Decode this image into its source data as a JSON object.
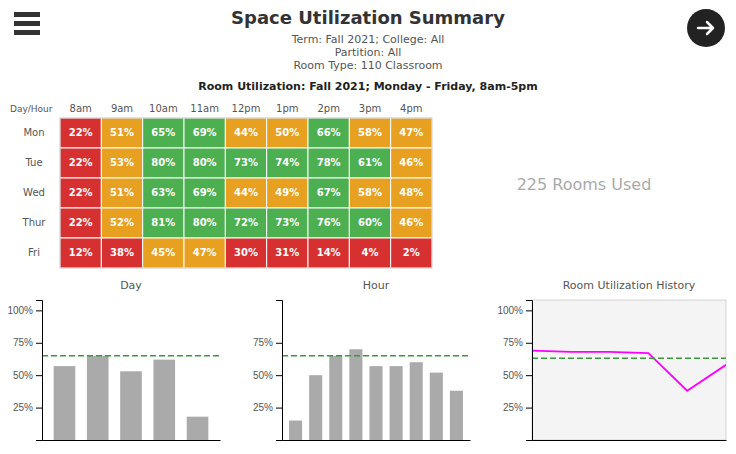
{
  "title": "Space Utilization Summary",
  "subtitle": [
    "Term: Fall 2021; College: All",
    "Partition: All",
    "Room Type: 110 Classroom"
  ],
  "annotations": [
    "225 Rooms Used"
  ],
  "chart_data": [
    {
      "type": "heatmap",
      "title": "Room Utilization: Fall 2021; Monday - Friday, 8am-5pm",
      "annotations": [
        "Day/Hour"
      ],
      "x": [
        "8am",
        "9am",
        "10am",
        "11am",
        "12pm",
        "1pm",
        "2pm",
        "3pm",
        "4pm"
      ],
      "y": [
        "Mon",
        "Tue",
        "Wed",
        "Thur",
        "Fri"
      ],
      "values": [
        [
          22,
          51,
          65,
          69,
          44,
          50,
          66,
          58,
          47
        ],
        [
          22,
          53,
          80,
          80,
          73,
          74,
          78,
          61,
          46
        ],
        [
          22,
          51,
          63,
          69,
          44,
          49,
          67,
          58,
          48
        ],
        [
          22,
          52,
          81,
          80,
          72,
          73,
          76,
          60,
          46
        ],
        [
          12,
          38,
          45,
          47,
          30,
          31,
          14,
          4,
          2
        ]
      ],
      "value_labels": [
        [
          "22%",
          "51%",
          "65%",
          "69%",
          "44%",
          "50%",
          "66%",
          "58%",
          "47%"
        ],
        [
          "22%",
          "53%",
          "80%",
          "80%",
          "73%",
          "74%",
          "78%",
          "61%",
          "46%"
        ],
        [
          "22%",
          "51%",
          "63%",
          "69%",
          "44%",
          "49%",
          "67%",
          "58%",
          "48%"
        ],
        [
          "22%",
          "52%",
          "81%",
          "80%",
          "72%",
          "73%",
          "76%",
          "60%",
          "46%"
        ],
        [
          "12%",
          "38%",
          "45%",
          "47%",
          "30%",
          "31%",
          "14%",
          "4%",
          "2%"
        ]
      ],
      "colors": [
        [
          "#d63030",
          "#e8a020",
          "#4caf50",
          "#4caf50",
          "#e8a020",
          "#e8a020",
          "#4caf50",
          "#e8a020",
          "#e8a020"
        ],
        [
          "#d63030",
          "#e8a020",
          "#4caf50",
          "#4caf50",
          "#4caf50",
          "#4caf50",
          "#4caf50",
          "#4caf50",
          "#e8a020"
        ],
        [
          "#d63030",
          "#e8a020",
          "#4caf50",
          "#4caf50",
          "#e8a020",
          "#e8a020",
          "#4caf50",
          "#e8a020",
          "#e8a020"
        ],
        [
          "#d63030",
          "#e8a020",
          "#4caf50",
          "#4caf50",
          "#4caf50",
          "#4caf50",
          "#4caf50",
          "#4caf50",
          "#e8a020"
        ],
        [
          "#d63030",
          "#d63030",
          "#e8a020",
          "#e8a020",
          "#d63030",
          "#d63030",
          "#d63030",
          "#d63030",
          "#d63030"
        ]
      ]
    },
    {
      "type": "bar",
      "title": "Day",
      "categories": [
        null,
        null,
        null,
        null,
        null
      ],
      "values": [
        57,
        65,
        53,
        62,
        18
      ],
      "color": "#aaaaaa",
      "ylim": [
        0,
        108
      ],
      "yticks": [
        {
          "value": 25,
          "label": "25%"
        },
        {
          "value": 50,
          "label": "50%"
        },
        {
          "value": 75,
          "label": "75%"
        },
        {
          "value": 100,
          "label": "100%"
        }
      ],
      "tick_labels": "y",
      "reference_line": {
        "value": 65,
        "color": "#3a9a3a",
        "line_style": "dashed"
      }
    },
    {
      "type": "bar",
      "title": "Hour",
      "categories": [
        null,
        null,
        null,
        null,
        null,
        null,
        null,
        null,
        null
      ],
      "values": [
        15,
        50,
        65,
        70,
        57,
        57,
        60,
        52,
        38
      ],
      "color": "#aaaaaa",
      "ylim": [
        0,
        108
      ],
      "yticks": [
        {
          "value": 25,
          "label": "25%"
        },
        {
          "value": 50,
          "label": "50%"
        },
        {
          "value": 75,
          "label": "75%"
        }
      ],
      "tick_labels": "y",
      "reference_line": {
        "value": 65,
        "color": "#3a9a3a",
        "line_style": "dashed"
      }
    },
    {
      "type": "line",
      "title": "Room Utilization History",
      "x": [
        0,
        1,
        2,
        3,
        4,
        5
      ],
      "values": [
        69,
        68,
        68,
        67,
        38,
        58
      ],
      "color": "#ff00ff",
      "xlim": [
        0,
        5
      ],
      "xticks": [],
      "ylim": [
        0,
        108
      ],
      "yticks": [
        {
          "value": 25,
          "label": "25%"
        },
        {
          "value": 50,
          "label": "50%"
        },
        {
          "value": 75,
          "label": "75%"
        },
        {
          "value": 100,
          "label": "100%"
        }
      ],
      "tick_labels": "y",
      "reference_line": {
        "value": 63,
        "color": "#3a9a3a",
        "line_style": "dashed"
      }
    }
  ]
}
